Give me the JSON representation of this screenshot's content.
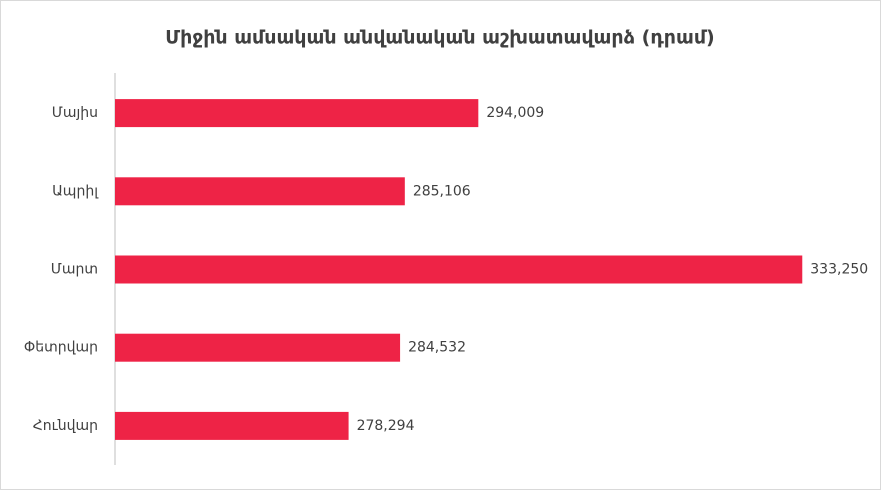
{
  "chart_data": {
    "type": "hbar",
    "title": "Միջին ամսական անվանական աշխատավարձ (դրամ)",
    "categories": [
      "Մայիս",
      "Ապրիլ",
      "Մարտ",
      "Փետրվար",
      "Հունվար"
    ],
    "values": [
      294009,
      285106,
      333250,
      284532,
      278294
    ],
    "value_labels": [
      "294,009",
      "285,106",
      "333,250",
      "284,532",
      "278,294"
    ],
    "color": "#ee2346",
    "xlim": [
      250000,
      340000
    ]
  }
}
